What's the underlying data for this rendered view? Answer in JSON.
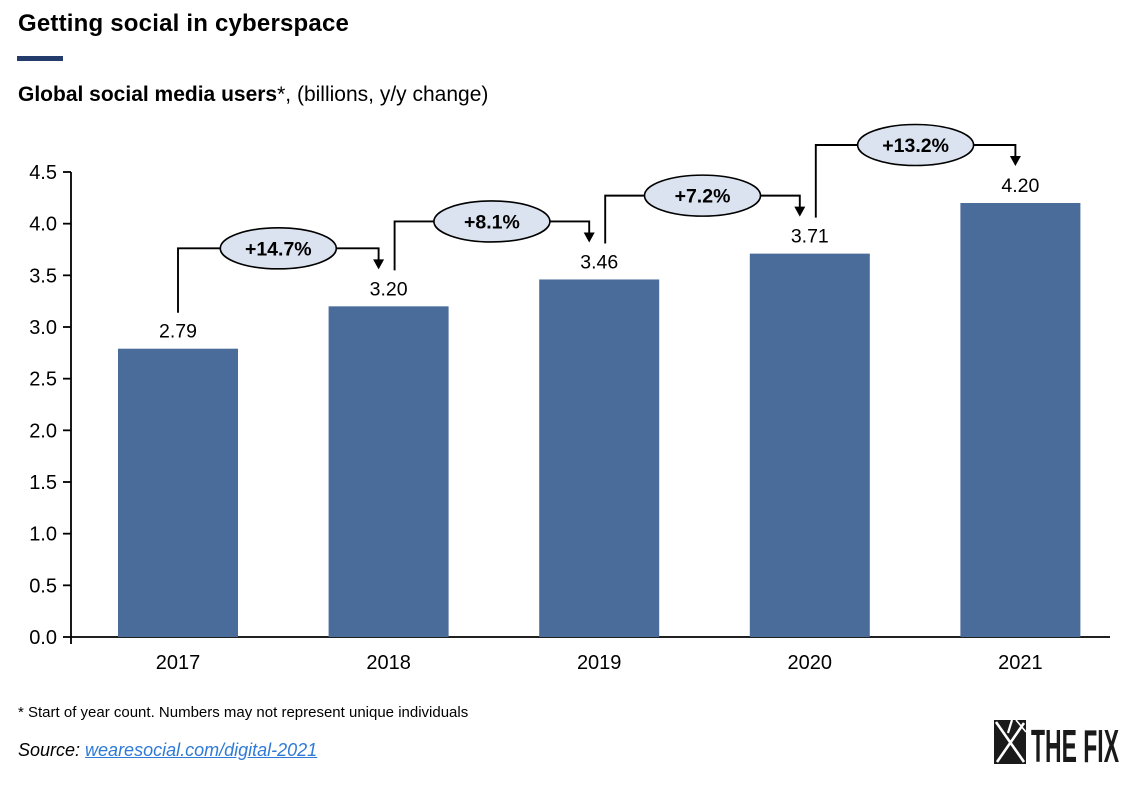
{
  "header": {
    "title": "Getting social in cyberspace",
    "subtitle_bold": "Global social media users",
    "subtitle_note": "*, (billions, y/y change)"
  },
  "chart_data": {
    "type": "bar",
    "title": "Global social media users (billions, y/y change)",
    "categories": [
      "2017",
      "2018",
      "2019",
      "2020",
      "2021"
    ],
    "values": [
      2.79,
      3.2,
      3.46,
      3.71,
      4.2
    ],
    "value_labels": [
      "2.79",
      "3.20",
      "3.46",
      "3.71",
      "4.20"
    ],
    "yoy_change_labels": [
      "+14.7%",
      "+8.1%",
      "+7.2%",
      "+13.2%"
    ],
    "xlabel": "",
    "ylabel": "",
    "ylim": [
      0.0,
      4.5
    ],
    "ytick_step": 0.5,
    "ytick_labels": [
      "0.0",
      "0.5",
      "1.0",
      "1.5",
      "2.0",
      "2.5",
      "3.0",
      "3.5",
      "4.0",
      "4.5"
    ],
    "grid": false,
    "legend": "none",
    "bar_color": "#4a6c9b",
    "callout_fill": "#dce3f0",
    "callout_border": "#000000",
    "axis_color": "#000000"
  },
  "footnote": "* Start of year count. Numbers may not represent unique individuals",
  "source": {
    "label": "Source: ",
    "link_text": "wearesocial.com/digital-2021",
    "link_color": "#2e7ad6"
  },
  "logo": {
    "text": "THE FIX",
    "icon": "shattered-x-icon",
    "color": "#1a1a1a"
  },
  "colors": {
    "accent_bar": "#243c6b",
    "bar": "#4a6c9b",
    "callout_fill": "#dce3f0",
    "link": "#2e7ad6"
  }
}
